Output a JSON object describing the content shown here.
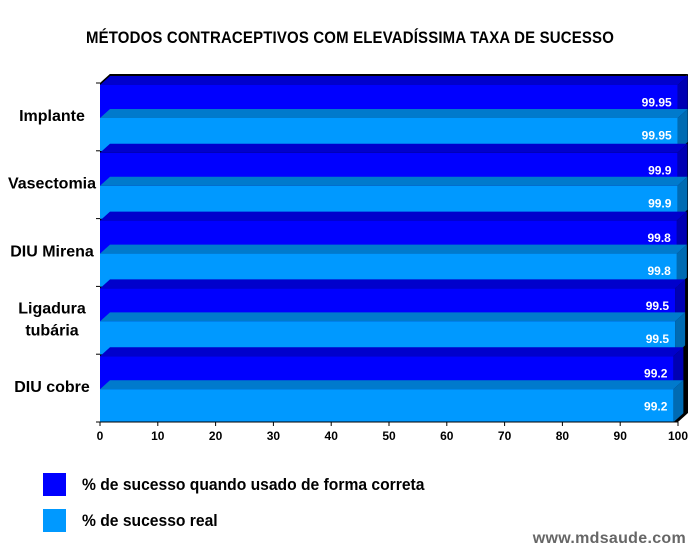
{
  "colors": {
    "correct": "#0000ff",
    "real": "#0099ff",
    "frame": "#000000"
  },
  "chart_data": {
    "type": "bar",
    "orientation": "horizontal",
    "title": "MÉTODOS CONTRACEPTIVOS COM ELEVADÍSSIMA TAXA DE SUCESSO",
    "categories": [
      "Implante",
      "Vasectomia",
      "DIU Mirena",
      "Ligadura\ntubária",
      "DIU cobre"
    ],
    "series": [
      {
        "name": "% de sucesso quando usado de forma correta",
        "values": [
          99.95,
          99.9,
          99.8,
          99.5,
          99.2
        ]
      },
      {
        "name": "% de sucesso real",
        "values": [
          99.95,
          99.9,
          99.8,
          99.5,
          99.2
        ]
      }
    ],
    "value_labels": [
      [
        "99.95",
        "99.9",
        "99.8",
        "99.5",
        "99.2"
      ],
      [
        "99.95",
        "99.9",
        "99.8",
        "99.5",
        "99.2"
      ]
    ],
    "xlim": [
      0,
      100
    ],
    "xticks": [
      0,
      10,
      20,
      30,
      40,
      50,
      60,
      70,
      80,
      90,
      100
    ],
    "legend_position": "bottom",
    "grid": false,
    "style": "3d"
  },
  "watermark": "www.mdsaude.com"
}
